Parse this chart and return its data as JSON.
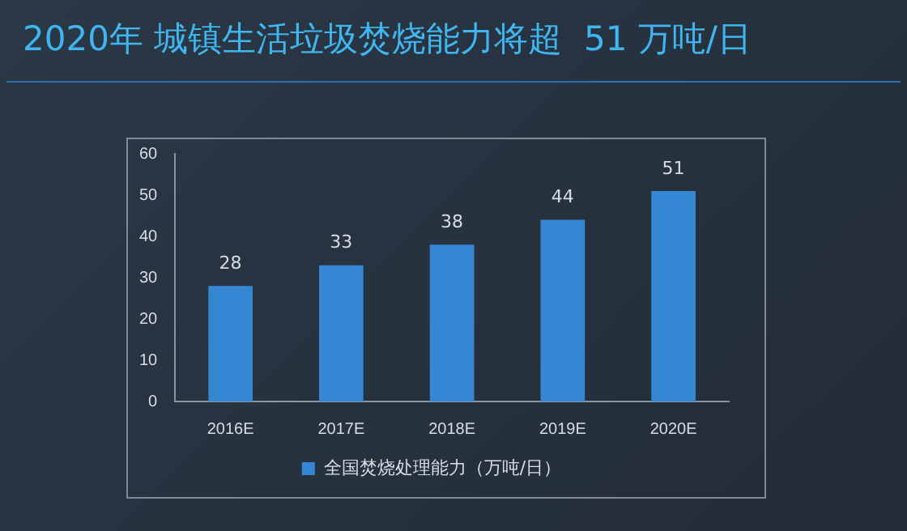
{
  "chart_data": {
    "type": "bar",
    "title": "2020年 城镇生活垃圾焚烧能力将超  51 万吨/日",
    "categories": [
      "2016E",
      "2017E",
      "2018E",
      "2019E",
      "2020E"
    ],
    "series": [
      {
        "name": "全国焚烧处理能力（万吨/日）",
        "color": "#3586d3",
        "values": [
          28,
          33,
          38,
          44,
          51
        ]
      }
    ],
    "ylim": [
      0,
      60
    ],
    "yticks": [
      0,
      10,
      20,
      30,
      40,
      50,
      60
    ],
    "grid": false,
    "legend": "bottom",
    "data_labels": true
  }
}
